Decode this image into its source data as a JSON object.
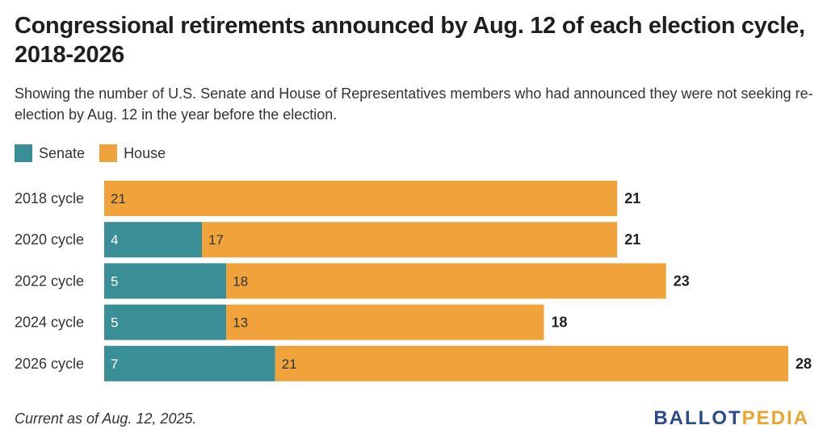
{
  "title": "Congressional retirements announced by Aug. 12 of each election cycle, 2018-2026",
  "subtitle": "Showing the number of U.S. Senate and House of Representatives members who had announced they were not seeking re-election by Aug. 12 in the year before the election.",
  "footnote": "Current as of Aug. 12, 2025.",
  "logo": {
    "part1": "BALLOT",
    "part2": "PEDIA"
  },
  "colors": {
    "senate": "#3a8f97",
    "house": "#f0a33a"
  },
  "chart_data": {
    "type": "bar",
    "orientation": "horizontal",
    "stacked": true,
    "categories": [
      "2018 cycle",
      "2020 cycle",
      "2022 cycle",
      "2024 cycle",
      "2026 cycle"
    ],
    "series": [
      {
        "name": "Senate",
        "values": [
          0,
          4,
          5,
          5,
          7
        ]
      },
      {
        "name": "House",
        "values": [
          21,
          17,
          18,
          13,
          21
        ]
      }
    ],
    "totals": [
      21,
      21,
      23,
      18,
      28
    ],
    "title": "Congressional retirements announced by Aug. 12 of each election cycle, 2018-2026",
    "xlabel": "",
    "ylabel": "",
    "xlim": [
      0,
      28
    ],
    "grid": false,
    "legend": "top-left"
  }
}
